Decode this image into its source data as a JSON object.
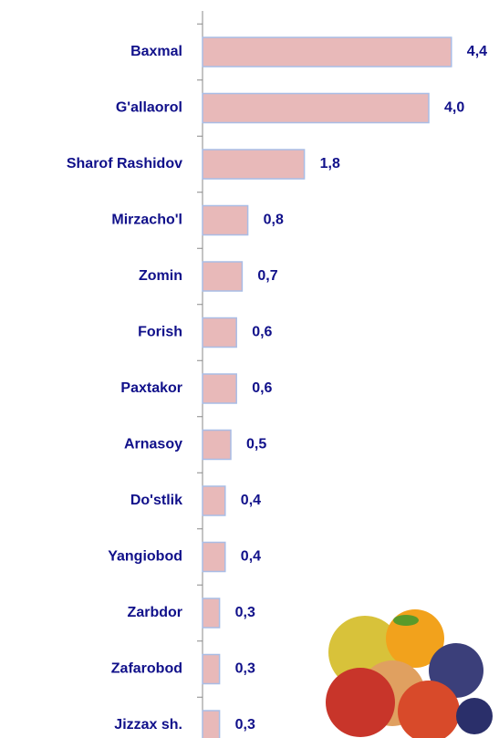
{
  "chart_data": {
    "type": "bar",
    "orientation": "horizontal",
    "categories": [
      "Baxmal",
      "G'allaorol",
      "Sharof Rashidov",
      "Mirzacho'l",
      "Zomin",
      "Forish",
      "Paxtakor",
      "Arnasoy",
      "Do'stlik",
      "Yangiobod",
      "Zarbdor",
      "Zafarobod",
      "Jizzax sh."
    ],
    "values": [
      4.4,
      4.0,
      1.8,
      0.8,
      0.7,
      0.6,
      0.6,
      0.5,
      0.4,
      0.4,
      0.3,
      0.3,
      0.3
    ],
    "value_labels": [
      "4,4",
      "4,0",
      "1,8",
      "0,8",
      "0,7",
      "0,6",
      "0,6",
      "0,5",
      "0,4",
      "0,4",
      "0,3",
      "0,3",
      "0,3"
    ],
    "color": "#e8b9b9",
    "edge_color": "#a9bde6"
  }
}
